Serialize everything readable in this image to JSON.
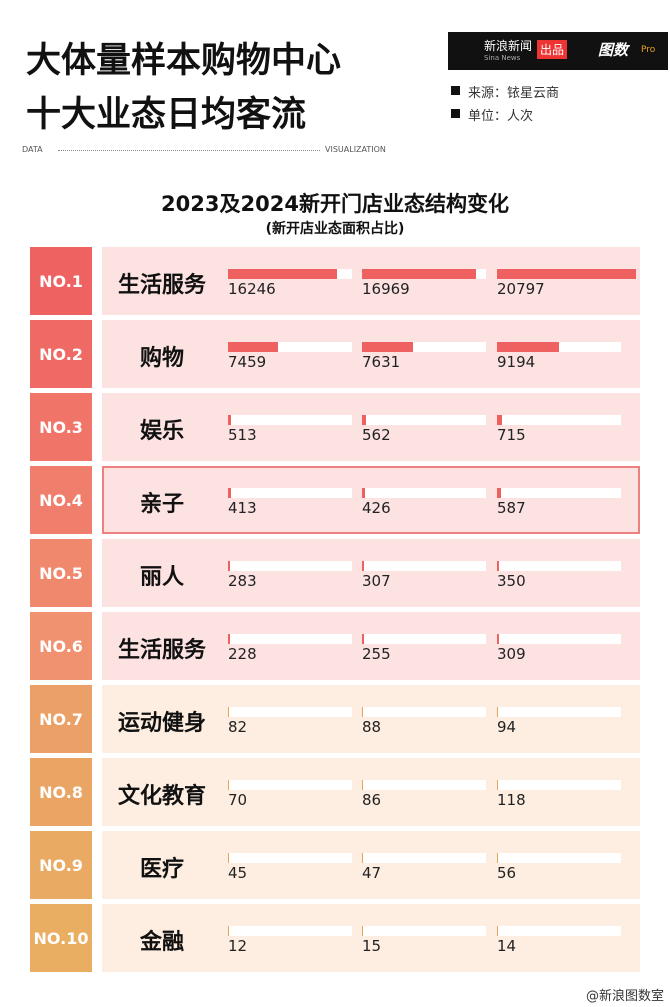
{
  "header": {
    "title_lines": [
      "大体量样本购物中心",
      "十大业态日均客流"
    ],
    "brand": "新浪新闻",
    "brand_en": "Sina News",
    "produced": "出品",
    "logo": "图数",
    "logo_tag": "Pro",
    "source": "来源：铱星云商",
    "unit": "单位：人次",
    "left_tag": "DATA",
    "right_tag": "VISUALIZATION"
  },
  "chart_data": {
    "type": "bar-table",
    "title": "2023及2024新开门店业态结构变化",
    "subtitle": "(新开店业态面积占比)",
    "ranks": [
      "NO.1",
      "NO.2",
      "NO.3",
      "NO.4",
      "NO.5",
      "NO.6",
      "NO.7",
      "NO.8",
      "NO.9",
      "NO.10"
    ],
    "categories": [
      "生活服务",
      "购物",
      "娱乐",
      "亲子",
      "丽人",
      "生活服务",
      "运动健身",
      "文化教育",
      "医疗",
      "金融"
    ],
    "xlim": [
      0,
      18500
    ],
    "series": [
      {
        "values": [
          16246,
          7459,
          513,
          413,
          283,
          228,
          82,
          70,
          45,
          12
        ]
      },
      {
        "values": [
          16969,
          7631,
          562,
          426,
          307,
          255,
          88,
          86,
          47,
          15
        ]
      },
      {
        "values": [
          20797,
          9194,
          715,
          587,
          350,
          309,
          94,
          118,
          56,
          14
        ]
      }
    ],
    "rank_colors": [
      "#ee6262",
      "#ef6a64",
      "#f07468",
      "#f07e6c",
      "#f0886e",
      "#f09270",
      "#eaa067",
      "#eaa565",
      "#e9aa63",
      "#e9ae62"
    ],
    "row_colors": [
      "#fde2e2",
      "#fde2e2",
      "#fde2e2",
      "#fde2e2",
      "#fde2e2",
      "#fde2e2",
      "#fdeee1",
      "#fdeee1",
      "#fdeee1",
      "#fdeee1"
    ],
    "bar_colors": [
      "#ef6161",
      "#ef6161",
      "#ef6161",
      "#ef6161",
      "#ef6161",
      "#ef6161",
      "#e8a45a",
      "#e8a45a",
      "#e8a45a",
      "#e8a45a"
    ],
    "highlight": 3
  },
  "footer": {
    "credit": "@新浪图数室"
  }
}
